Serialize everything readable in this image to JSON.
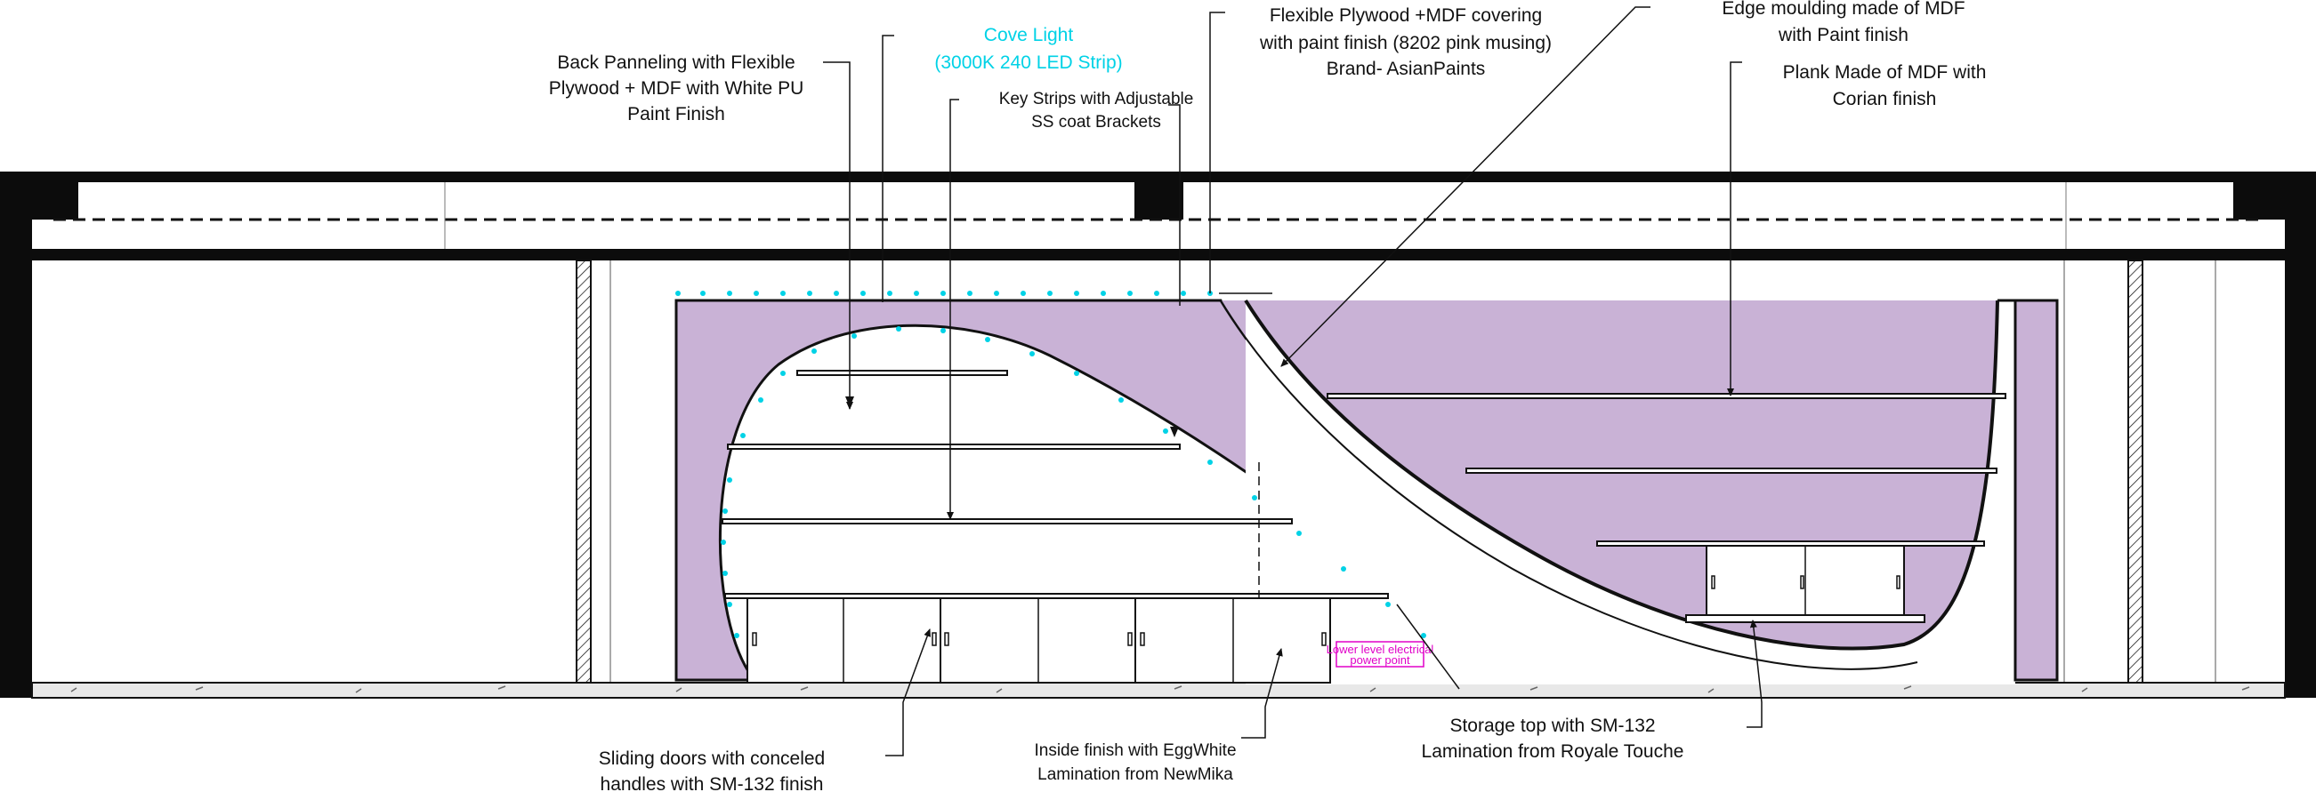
{
  "colors": {
    "line": "#111111",
    "panel": "#c9b2d6",
    "led": "#00d2e6",
    "electrical": "#e000c8",
    "floor": "#e8e8e8"
  },
  "annotations": {
    "back_panel": [
      "Back Panneling with Flexible",
      "Plywood + MDF with White PU",
      "Paint Finish"
    ],
    "cove_light": [
      "Cove Light",
      "(3000K 240 LED Strip)"
    ],
    "key_strips": [
      "Key Strips with Adjustable",
      "SS coat Brackets"
    ],
    "flexible_plywood": [
      "Flexible Plywood +MDF covering",
      "with paint finish (8202 pink musing)",
      "Brand- AsianPaints"
    ],
    "edge_moulding": [
      "Edge moulding made of MDF",
      "with Paint finish"
    ],
    "plank": [
      "Plank Made of MDF with",
      "Corian finish"
    ],
    "sliding_doors": [
      "Sliding doors with conceled",
      "handles with SM-132 finish"
    ],
    "inside_finish": [
      "Inside finish with EggWhite",
      "Lamination from NewMika"
    ],
    "storage_top": [
      "Storage top with SM-132",
      "Lamination from Royale Touche"
    ],
    "electrical_point": [
      "Lower level electrical",
      "power point"
    ]
  }
}
